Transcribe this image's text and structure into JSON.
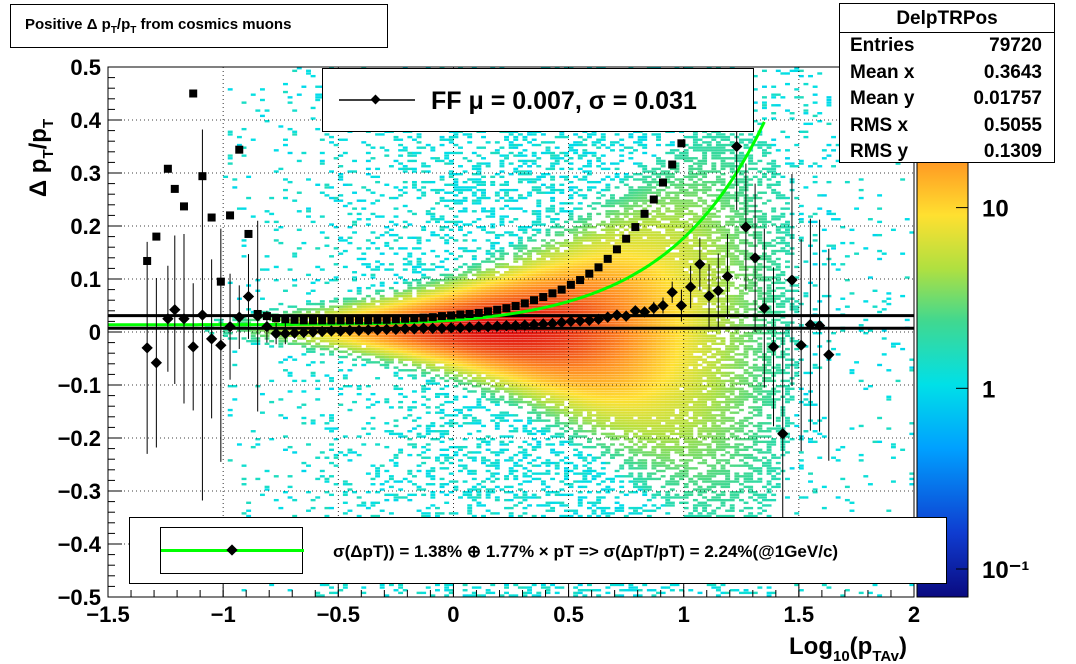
{
  "title": "Positive Δ p_T/p_T from cosmics muons",
  "stats": {
    "name": "DelpTRPos",
    "rows": [
      {
        "label": "Entries",
        "value": "79720"
      },
      {
        "label": "Mean x",
        "value": "0.3643"
      },
      {
        "label": "Mean y",
        "value": "0.01757"
      },
      {
        "label": "RMS x",
        "value": "0.5055"
      },
      {
        "label": "RMS y",
        "value": "0.1309"
      }
    ]
  },
  "legend_ff": "FF μ =  0.007, σ =   0.031",
  "legend_sigma": "σ(ΔpT)) =  1.38% ⊕  1.77% × pT => σ(ΔpT/pT) =  2.24%(@1GeV/c)",
  "colors": {
    "fit_line": "#00ff00",
    "markers": "#000000",
    "rms_cyan": "#00c8e0"
  },
  "chart_data": {
    "type": "heatmap",
    "title": "Positive Δ p_T/p_T from cosmics muons",
    "xlabel": "Log_10(p_TAv)",
    "ylabel": "Δ p_T/p_T",
    "xlim": [
      -1.5,
      2
    ],
    "ylim": [
      -0.5,
      0.5
    ],
    "xticks": [
      -1.5,
      -1,
      -0.5,
      0,
      0.5,
      1,
      1.5,
      2
    ],
    "yticks": [
      -0.5,
      -0.4,
      -0.3,
      -0.2,
      -0.1,
      0,
      0.1,
      0.2,
      0.3,
      0.4,
      0.5
    ],
    "z_scale": "log",
    "zlim": [
      0.07,
      60
    ],
    "zticks": [
      0.1,
      1,
      10
    ],
    "grid": true,
    "legend_placement": "top-center",
    "horizontal_lines": [
      0.007,
      0.031
    ],
    "series": [
      {
        "kind": "mean_points_diamond",
        "points": [
          [
            -1.33,
            -0.03,
            0.2
          ],
          [
            -1.29,
            -0.058,
            0.16
          ],
          [
            -1.24,
            0.025,
            0.1
          ],
          [
            -1.21,
            0.042,
            0.14
          ],
          [
            -1.17,
            0.025,
            0.16
          ],
          [
            -1.13,
            -0.028,
            0.12
          ],
          [
            -1.09,
            0.032,
            0.35
          ],
          [
            -1.05,
            -0.013,
            0.15
          ],
          [
            -1.01,
            -0.025,
            0.22
          ],
          [
            -0.97,
            0.01,
            0.1
          ],
          [
            -0.93,
            0.028,
            0.06
          ],
          [
            -0.89,
            0.067,
            0.08
          ],
          [
            -0.85,
            0.03,
            0.18
          ],
          [
            -0.81,
            0.01,
            0.03
          ],
          [
            -0.77,
            -0.003,
            0.02
          ],
          [
            -0.73,
            -0.003,
            0.02
          ],
          [
            -0.69,
            -0.002,
            0.01
          ],
          [
            -0.65,
            -0.001,
            0.01
          ],
          [
            -0.61,
            0.0,
            0.01
          ],
          [
            -0.57,
            0.001,
            0.01
          ],
          [
            -0.53,
            0.002,
            0.01
          ],
          [
            -0.49,
            0.002,
            0.01
          ],
          [
            -0.45,
            0.003,
            0.01
          ],
          [
            -0.41,
            0.003,
            0.01
          ],
          [
            -0.37,
            0.004,
            0.01
          ],
          [
            -0.33,
            0.004,
            0.01
          ],
          [
            -0.29,
            0.005,
            0.01
          ],
          [
            -0.25,
            0.005,
            0.01
          ],
          [
            -0.21,
            0.006,
            0.01
          ],
          [
            -0.17,
            0.006,
            0.01
          ],
          [
            -0.13,
            0.007,
            0.01
          ],
          [
            -0.09,
            0.007,
            0.01
          ],
          [
            -0.05,
            0.007,
            0.01
          ],
          [
            -0.01,
            0.008,
            0.01
          ],
          [
            0.03,
            0.008,
            0.01
          ],
          [
            0.07,
            0.009,
            0.01
          ],
          [
            0.11,
            0.01,
            0.01
          ],
          [
            0.15,
            0.01,
            0.01
          ],
          [
            0.19,
            0.011,
            0.01
          ],
          [
            0.23,
            0.012,
            0.01
          ],
          [
            0.27,
            0.012,
            0.01
          ],
          [
            0.31,
            0.013,
            0.01
          ],
          [
            0.35,
            0.014,
            0.01
          ],
          [
            0.39,
            0.015,
            0.01
          ],
          [
            0.43,
            0.016,
            0.01
          ],
          [
            0.47,
            0.018,
            0.01
          ],
          [
            0.51,
            0.02,
            0.01
          ],
          [
            0.55,
            0.021,
            0.01
          ],
          [
            0.59,
            0.022,
            0.01
          ],
          [
            0.63,
            0.024,
            0.01
          ],
          [
            0.67,
            0.028,
            0.01
          ],
          [
            0.71,
            0.032,
            0.01
          ],
          [
            0.75,
            0.03,
            0.01
          ],
          [
            0.79,
            0.04,
            0.01
          ],
          [
            0.83,
            0.038,
            0.01
          ],
          [
            0.87,
            0.045,
            0.012
          ],
          [
            0.91,
            0.05,
            0.015
          ],
          [
            0.95,
            0.075,
            0.02
          ],
          [
            0.99,
            0.05,
            0.03
          ],
          [
            1.03,
            0.085,
            0.04
          ],
          [
            1.07,
            0.128,
            0.05
          ],
          [
            1.11,
            0.068,
            0.06
          ],
          [
            1.15,
            0.078,
            0.07
          ],
          [
            1.19,
            0.105,
            0.08
          ],
          [
            1.23,
            0.35,
            0.12
          ],
          [
            1.27,
            0.198,
            0.12
          ],
          [
            1.31,
            0.14,
            0.14
          ],
          [
            1.35,
            0.045,
            0.15
          ],
          [
            1.39,
            -0.028,
            0.15
          ],
          [
            1.43,
            -0.192,
            0.2
          ],
          [
            1.47,
            0.098,
            0.2
          ],
          [
            1.51,
            -0.025,
            0.2
          ],
          [
            1.55,
            0.014,
            0.2
          ],
          [
            1.59,
            0.012,
            0.2
          ],
          [
            1.63,
            -0.043,
            0.2
          ]
        ]
      },
      {
        "kind": "rms_points_square",
        "points": [
          [
            -1.33,
            0.134
          ],
          [
            -1.29,
            0.18
          ],
          [
            -1.24,
            0.308
          ],
          [
            -1.21,
            0.27
          ],
          [
            -1.17,
            0.237
          ],
          [
            -1.13,
            0.45
          ],
          [
            -1.09,
            0.294
          ],
          [
            -1.05,
            0.216
          ],
          [
            -1.01,
            0.095
          ],
          [
            -0.97,
            0.22
          ],
          [
            -0.93,
            0.344
          ],
          [
            -0.89,
            0.185
          ],
          [
            -0.85,
            0.034
          ],
          [
            -0.81,
            0.03
          ],
          [
            -0.77,
            0.026
          ],
          [
            -0.73,
            0.024
          ],
          [
            -0.69,
            0.023
          ],
          [
            -0.65,
            0.022
          ],
          [
            -0.61,
            0.022
          ],
          [
            -0.57,
            0.022
          ],
          [
            -0.53,
            0.022
          ],
          [
            -0.49,
            0.022
          ],
          [
            -0.45,
            0.022
          ],
          [
            -0.41,
            0.022
          ],
          [
            -0.37,
            0.022
          ],
          [
            -0.33,
            0.023
          ],
          [
            -0.29,
            0.023
          ],
          [
            -0.25,
            0.024
          ],
          [
            -0.21,
            0.025
          ],
          [
            -0.17,
            0.026
          ],
          [
            -0.13,
            0.027
          ],
          [
            -0.09,
            0.028
          ],
          [
            -0.05,
            0.03
          ],
          [
            -0.01,
            0.031
          ],
          [
            0.03,
            0.033
          ],
          [
            0.07,
            0.034
          ],
          [
            0.11,
            0.036
          ],
          [
            0.15,
            0.039
          ],
          [
            0.19,
            0.042
          ],
          [
            0.23,
            0.045
          ],
          [
            0.27,
            0.049
          ],
          [
            0.31,
            0.054
          ],
          [
            0.35,
            0.06
          ],
          [
            0.39,
            0.066
          ],
          [
            0.43,
            0.073
          ],
          [
            0.47,
            0.08
          ],
          [
            0.51,
            0.089
          ],
          [
            0.55,
            0.098
          ],
          [
            0.59,
            0.11
          ],
          [
            0.63,
            0.122
          ],
          [
            0.67,
            0.138
          ],
          [
            0.71,
            0.156
          ],
          [
            0.75,
            0.176
          ],
          [
            0.79,
            0.198
          ],
          [
            0.83,
            0.223
          ],
          [
            0.87,
            0.25
          ],
          [
            0.91,
            0.282
          ],
          [
            0.95,
            0.316
          ],
          [
            0.99,
            0.356
          ],
          [
            1.03,
            0.398
          ]
        ]
      }
    ],
    "fit_curve": {
      "stochastic_pct": 1.38,
      "linear_pct": 1.77,
      "total_at_1GeV_pct": 2.24
    }
  }
}
